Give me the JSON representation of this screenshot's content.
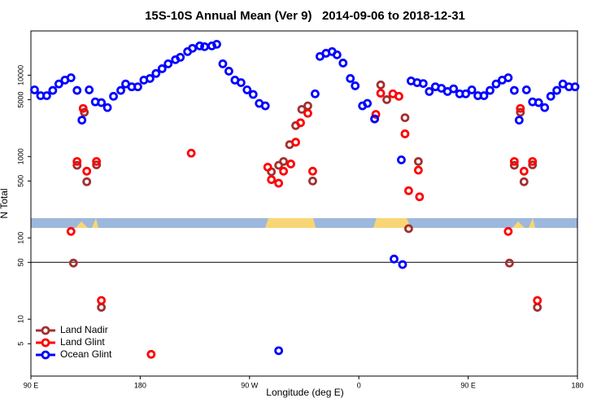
{
  "chart_data": {
    "type": "scatter",
    "title": "15S-10S Annual Mean (Ver 9)   2014-09-06 to 2018-12-31",
    "x_label": "Longitude (deg E)",
    "y_label": "N Total",
    "xlim": [
      90,
      540
    ],
    "ylim": [
      2,
      35000
    ],
    "log_y": true,
    "xticks": [
      {
        "value": 90,
        "label": "90 E"
      },
      180,
      {
        "value": 270,
        "label": "90 W"
      },
      {
        "value": 360,
        "label": "0"
      },
      {
        "value": 450,
        "label": "90 E"
      },
      {
        "value": 540,
        "label": "180"
      }
    ],
    "yticks": [
      5,
      10,
      50,
      100,
      500,
      1000,
      5000,
      10000
    ],
    "reference_line": 50,
    "legend": "bottom left",
    "series": [
      {
        "name": "Land Nadir",
        "color": "#a33030",
        "x": [
          125,
          128,
          134,
          136,
          144,
          148,
          288,
          294,
          298,
          303,
          308,
          313,
          318,
          322,
          373,
          378,
          383,
          398,
          401,
          409,
          484,
          488,
          493,
          496,
          503,
          507
        ],
        "values": [
          49,
          780,
          3500,
          490,
          790,
          14,
          650,
          780,
          870,
          1400,
          2400,
          3800,
          4200,
          500,
          2900,
          7600,
          5000,
          3000,
          130,
          870,
          49,
          780,
          3500,
          490,
          790,
          14
        ]
      },
      {
        "name": "Land Glint",
        "color": "#ff0000",
        "x": [
          123,
          128,
          133,
          136,
          144,
          148,
          189,
          222,
          285,
          288,
          294,
          298,
          304,
          308,
          312,
          318,
          322,
          374,
          378,
          388,
          393,
          398,
          401,
          409,
          410,
          483,
          488,
          493,
          496,
          503,
          507
        ],
        "values": [
          120,
          870,
          3900,
          660,
          870,
          17,
          3.7,
          1100,
          740,
          520,
          470,
          660,
          810,
          1500,
          2600,
          3400,
          660,
          3300,
          6000,
          5900,
          5500,
          1900,
          380,
          680,
          320,
          120,
          870,
          3900,
          660,
          870,
          17
        ]
      },
      {
        "name": "Ocean Glint",
        "color": "#0000ff",
        "x": [
          93,
          98,
          103,
          108,
          113,
          118,
          123,
          128,
          132,
          138,
          143,
          148,
          153,
          158,
          164,
          168,
          173,
          178,
          183,
          188,
          193,
          198,
          203,
          209,
          213,
          219,
          223,
          229,
          233,
          239,
          243,
          248,
          253,
          258,
          263,
          268,
          273,
          278,
          283,
          294,
          324,
          328,
          333,
          338,
          342,
          347,
          353,
          357,
          363,
          367,
          373,
          389,
          395,
          396,
          403,
          408,
          413,
          418,
          423,
          428,
          433,
          438,
          443,
          448,
          453,
          458,
          463,
          468,
          473,
          478,
          483,
          488,
          492,
          498,
          503,
          508,
          513,
          518,
          523,
          528,
          533,
          538
        ],
        "values": [
          6600,
          5600,
          5600,
          6500,
          7800,
          8700,
          9300,
          6500,
          2800,
          6600,
          4700,
          4600,
          4000,
          5500,
          6500,
          7800,
          7200,
          7200,
          8700,
          9100,
          10500,
          12000,
          13800,
          15500,
          16600,
          19500,
          21400,
          22900,
          22400,
          22900,
          24000,
          13800,
          11200,
          8700,
          8100,
          6600,
          5800,
          4500,
          4200,
          4.1,
          5900,
          17000,
          18600,
          19500,
          17800,
          14100,
          9100,
          7400,
          4200,
          4500,
          2900,
          55,
          910,
          47,
          8500,
          8100,
          7900,
          6300,
          7200,
          6900,
          6300,
          6800,
          5900,
          5900,
          6600,
          5600,
          5600,
          6500,
          7800,
          8700,
          9300,
          6500,
          2800,
          6600,
          4700,
          4600,
          4000,
          5500,
          6500,
          7800,
          7200,
          7200
        ]
      }
    ]
  }
}
